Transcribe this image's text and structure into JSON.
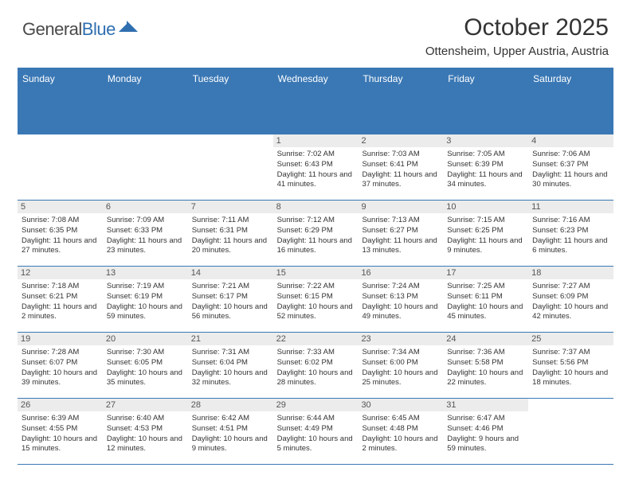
{
  "logo": {
    "text_general": "General",
    "text_blue": "Blue"
  },
  "title": "October 2025",
  "subtitle": "Ottensheim, Upper Austria, Austria",
  "colors": {
    "brand_blue": "#3a78b5",
    "logo_blue": "#2f6fb0",
    "day_header_bg": "#ececec",
    "text": "#333333",
    "background": "#ffffff"
  },
  "day_headers": [
    "Sunday",
    "Monday",
    "Tuesday",
    "Wednesday",
    "Thursday",
    "Friday",
    "Saturday"
  ],
  "weeks": [
    [
      {
        "empty": true
      },
      {
        "empty": true
      },
      {
        "empty": true
      },
      {
        "num": "1",
        "sunrise": "7:02 AM",
        "sunset": "6:43 PM",
        "daylight": "11 hours and 41 minutes."
      },
      {
        "num": "2",
        "sunrise": "7:03 AM",
        "sunset": "6:41 PM",
        "daylight": "11 hours and 37 minutes."
      },
      {
        "num": "3",
        "sunrise": "7:05 AM",
        "sunset": "6:39 PM",
        "daylight": "11 hours and 34 minutes."
      },
      {
        "num": "4",
        "sunrise": "7:06 AM",
        "sunset": "6:37 PM",
        "daylight": "11 hours and 30 minutes."
      }
    ],
    [
      {
        "num": "5",
        "sunrise": "7:08 AM",
        "sunset": "6:35 PM",
        "daylight": "11 hours and 27 minutes."
      },
      {
        "num": "6",
        "sunrise": "7:09 AM",
        "sunset": "6:33 PM",
        "daylight": "11 hours and 23 minutes."
      },
      {
        "num": "7",
        "sunrise": "7:11 AM",
        "sunset": "6:31 PM",
        "daylight": "11 hours and 20 minutes."
      },
      {
        "num": "8",
        "sunrise": "7:12 AM",
        "sunset": "6:29 PM",
        "daylight": "11 hours and 16 minutes."
      },
      {
        "num": "9",
        "sunrise": "7:13 AM",
        "sunset": "6:27 PM",
        "daylight": "11 hours and 13 minutes."
      },
      {
        "num": "10",
        "sunrise": "7:15 AM",
        "sunset": "6:25 PM",
        "daylight": "11 hours and 9 minutes."
      },
      {
        "num": "11",
        "sunrise": "7:16 AM",
        "sunset": "6:23 PM",
        "daylight": "11 hours and 6 minutes."
      }
    ],
    [
      {
        "num": "12",
        "sunrise": "7:18 AM",
        "sunset": "6:21 PM",
        "daylight": "11 hours and 2 minutes."
      },
      {
        "num": "13",
        "sunrise": "7:19 AM",
        "sunset": "6:19 PM",
        "daylight": "10 hours and 59 minutes."
      },
      {
        "num": "14",
        "sunrise": "7:21 AM",
        "sunset": "6:17 PM",
        "daylight": "10 hours and 56 minutes."
      },
      {
        "num": "15",
        "sunrise": "7:22 AM",
        "sunset": "6:15 PM",
        "daylight": "10 hours and 52 minutes."
      },
      {
        "num": "16",
        "sunrise": "7:24 AM",
        "sunset": "6:13 PM",
        "daylight": "10 hours and 49 minutes."
      },
      {
        "num": "17",
        "sunrise": "7:25 AM",
        "sunset": "6:11 PM",
        "daylight": "10 hours and 45 minutes."
      },
      {
        "num": "18",
        "sunrise": "7:27 AM",
        "sunset": "6:09 PM",
        "daylight": "10 hours and 42 minutes."
      }
    ],
    [
      {
        "num": "19",
        "sunrise": "7:28 AM",
        "sunset": "6:07 PM",
        "daylight": "10 hours and 39 minutes."
      },
      {
        "num": "20",
        "sunrise": "7:30 AM",
        "sunset": "6:05 PM",
        "daylight": "10 hours and 35 minutes."
      },
      {
        "num": "21",
        "sunrise": "7:31 AM",
        "sunset": "6:04 PM",
        "daylight": "10 hours and 32 minutes."
      },
      {
        "num": "22",
        "sunrise": "7:33 AM",
        "sunset": "6:02 PM",
        "daylight": "10 hours and 28 minutes."
      },
      {
        "num": "23",
        "sunrise": "7:34 AM",
        "sunset": "6:00 PM",
        "daylight": "10 hours and 25 minutes."
      },
      {
        "num": "24",
        "sunrise": "7:36 AM",
        "sunset": "5:58 PM",
        "daylight": "10 hours and 22 minutes."
      },
      {
        "num": "25",
        "sunrise": "7:37 AM",
        "sunset": "5:56 PM",
        "daylight": "10 hours and 18 minutes."
      }
    ],
    [
      {
        "num": "26",
        "sunrise": "6:39 AM",
        "sunset": "4:55 PM",
        "daylight": "10 hours and 15 minutes."
      },
      {
        "num": "27",
        "sunrise": "6:40 AM",
        "sunset": "4:53 PM",
        "daylight": "10 hours and 12 minutes."
      },
      {
        "num": "28",
        "sunrise": "6:42 AM",
        "sunset": "4:51 PM",
        "daylight": "10 hours and 9 minutes."
      },
      {
        "num": "29",
        "sunrise": "6:44 AM",
        "sunset": "4:49 PM",
        "daylight": "10 hours and 5 minutes."
      },
      {
        "num": "30",
        "sunrise": "6:45 AM",
        "sunset": "4:48 PM",
        "daylight": "10 hours and 2 minutes."
      },
      {
        "num": "31",
        "sunrise": "6:47 AM",
        "sunset": "4:46 PM",
        "daylight": "9 hours and 59 minutes."
      },
      {
        "empty": true
      }
    ]
  ],
  "labels": {
    "sunrise": "Sunrise:",
    "sunset": "Sunset:",
    "daylight": "Daylight:"
  }
}
